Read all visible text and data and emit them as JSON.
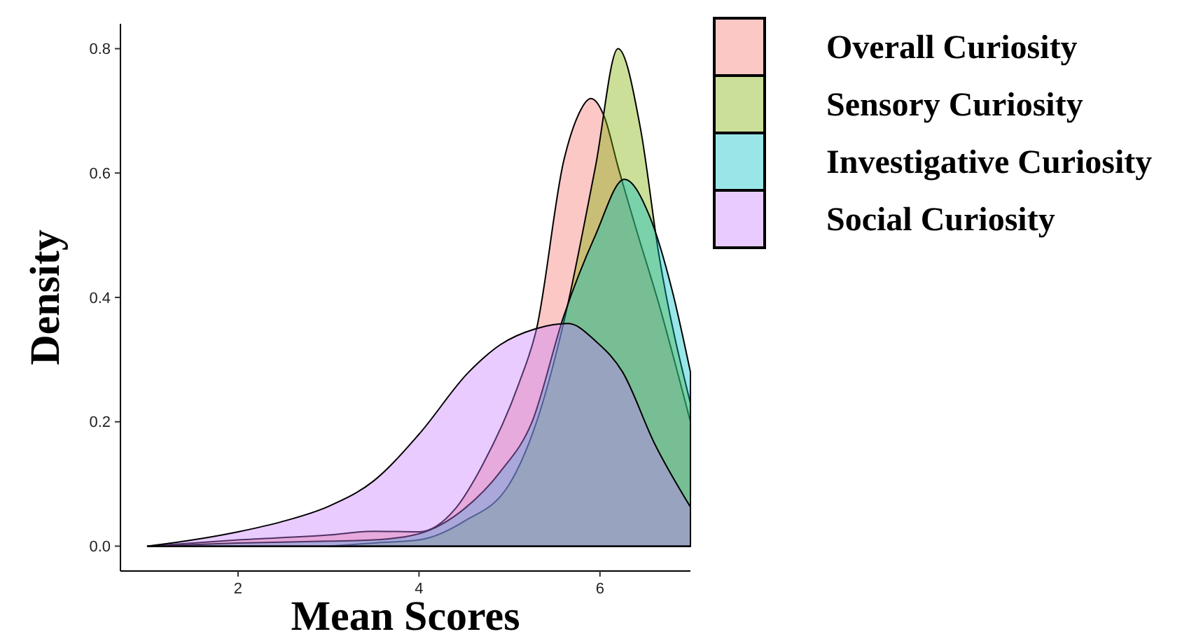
{
  "chart_data": {
    "type": "area",
    "xlabel": "Mean Scores",
    "ylabel": "Density",
    "xlim": [
      0.7,
      7
    ],
    "xticks": [
      2,
      4,
      6
    ],
    "ylim": [
      -0.04,
      0.84
    ],
    "yticks": [
      {
        "value": 0,
        "label": "0.0"
      },
      0.2,
      0.4,
      0.6,
      0.8
    ],
    "grid": false,
    "legend": "right",
    "series": [
      {
        "name": "Overall Curiosity",
        "color": "#f8766d",
        "x": [
          1,
          2,
          3,
          3.5,
          4,
          4.4,
          4.7,
          5.1,
          5.3,
          5.6,
          5.75,
          5.9,
          6.05,
          6.2,
          6.4,
          6.65,
          7
        ],
        "values": [
          0,
          0.01,
          0.018,
          0.024,
          0.023,
          0.06,
          0.13,
          0.26,
          0.35,
          0.62,
          0.69,
          0.72,
          0.69,
          0.61,
          0.51,
          0.39,
          0.2
        ]
      },
      {
        "name": "Sensory Curiosity",
        "color": "#7cae00",
        "x": [
          3,
          3.5,
          4,
          4.5,
          5,
          5.3,
          5.6,
          5.95,
          6.2,
          6.45,
          6.65,
          7
        ],
        "values": [
          0,
          0.005,
          0.01,
          0.04,
          0.1,
          0.2,
          0.36,
          0.61,
          0.8,
          0.67,
          0.47,
          0.23
        ]
      },
      {
        "name": "Investigative Curiosity",
        "color": "#00bfc4",
        "x": [
          1,
          2,
          3,
          3.5,
          4,
          4.5,
          4.9,
          5.25,
          5.6,
          5.95,
          6.27,
          6.55,
          6.8,
          7
        ],
        "values": [
          0,
          0.005,
          0.008,
          0.01,
          0.02,
          0.06,
          0.12,
          0.2,
          0.37,
          0.5,
          0.59,
          0.53,
          0.41,
          0.28
        ]
      },
      {
        "name": "Social Curiosity",
        "color": "#c77cff",
        "x": [
          1,
          1.5,
          2,
          2.5,
          3,
          3.5,
          4,
          4.55,
          4.9,
          5.3,
          5.65,
          5.95,
          6.25,
          6.6,
          7
        ],
        "values": [
          0,
          0.01,
          0.023,
          0.04,
          0.064,
          0.105,
          0.18,
          0.28,
          0.324,
          0.35,
          0.358,
          0.33,
          0.28,
          0.166,
          0.063
        ]
      }
    ]
  }
}
